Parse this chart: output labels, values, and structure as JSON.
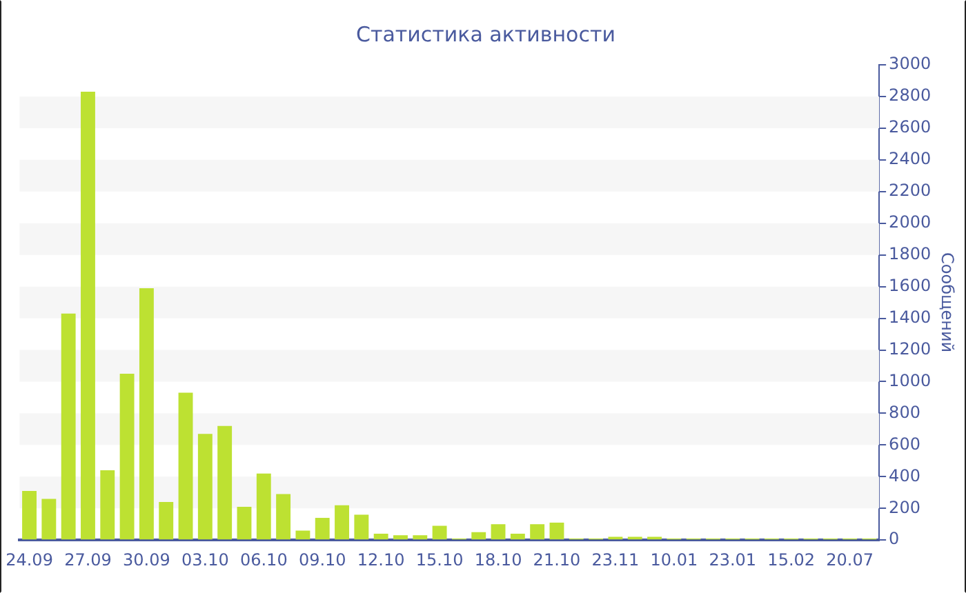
{
  "chart_data": {
    "type": "bar",
    "title": "Статистика активности",
    "ylabel": "Сообщений",
    "categories": [
      "24.09",
      null,
      null,
      "27.09",
      null,
      null,
      "30.09",
      null,
      null,
      "03.10",
      null,
      null,
      "06.10",
      null,
      null,
      "09.10",
      null,
      null,
      "12.10",
      null,
      null,
      "15.10",
      null,
      null,
      "18.10",
      null,
      null,
      "21.10",
      null,
      null,
      "23.11",
      null,
      null,
      "10.01",
      null,
      null,
      "23.01",
      null,
      null,
      "15.02",
      null,
      null,
      "20.07",
      null
    ],
    "values": [
      310,
      260,
      1430,
      2830,
      440,
      1050,
      1590,
      240,
      930,
      670,
      720,
      210,
      420,
      290,
      60,
      140,
      220,
      160,
      40,
      30,
      30,
      90,
      10,
      50,
      100,
      40,
      100,
      110,
      10,
      10,
      20,
      20,
      20,
      10,
      10,
      10,
      10,
      10,
      10,
      10,
      10,
      10,
      10,
      10
    ],
    "color": "#bde132",
    "ylim": [
      0,
      3000
    ],
    "yticks": [
      0,
      200,
      400,
      600,
      800,
      1000,
      1200,
      1400,
      1600,
      1800,
      2000,
      2200,
      2400,
      2600,
      2800,
      3000
    ],
    "bands": [
      {
        "axis": "y",
        "from": 200,
        "to": 400,
        "color": "#f6f6f6"
      },
      {
        "axis": "y",
        "from": 600,
        "to": 800,
        "color": "#f6f6f6"
      },
      {
        "axis": "y",
        "from": 1000,
        "to": 1200,
        "color": "#f6f6f6"
      },
      {
        "axis": "y",
        "from": 1400,
        "to": 1600,
        "color": "#f6f6f6"
      },
      {
        "axis": "y",
        "from": 1800,
        "to": 2000,
        "color": "#f6f6f6"
      },
      {
        "axis": "y",
        "from": 2200,
        "to": 2400,
        "color": "#f6f6f6"
      },
      {
        "axis": "y",
        "from": 2600,
        "to": 2800,
        "color": "#f6f6f6"
      }
    ],
    "legend": false
  }
}
